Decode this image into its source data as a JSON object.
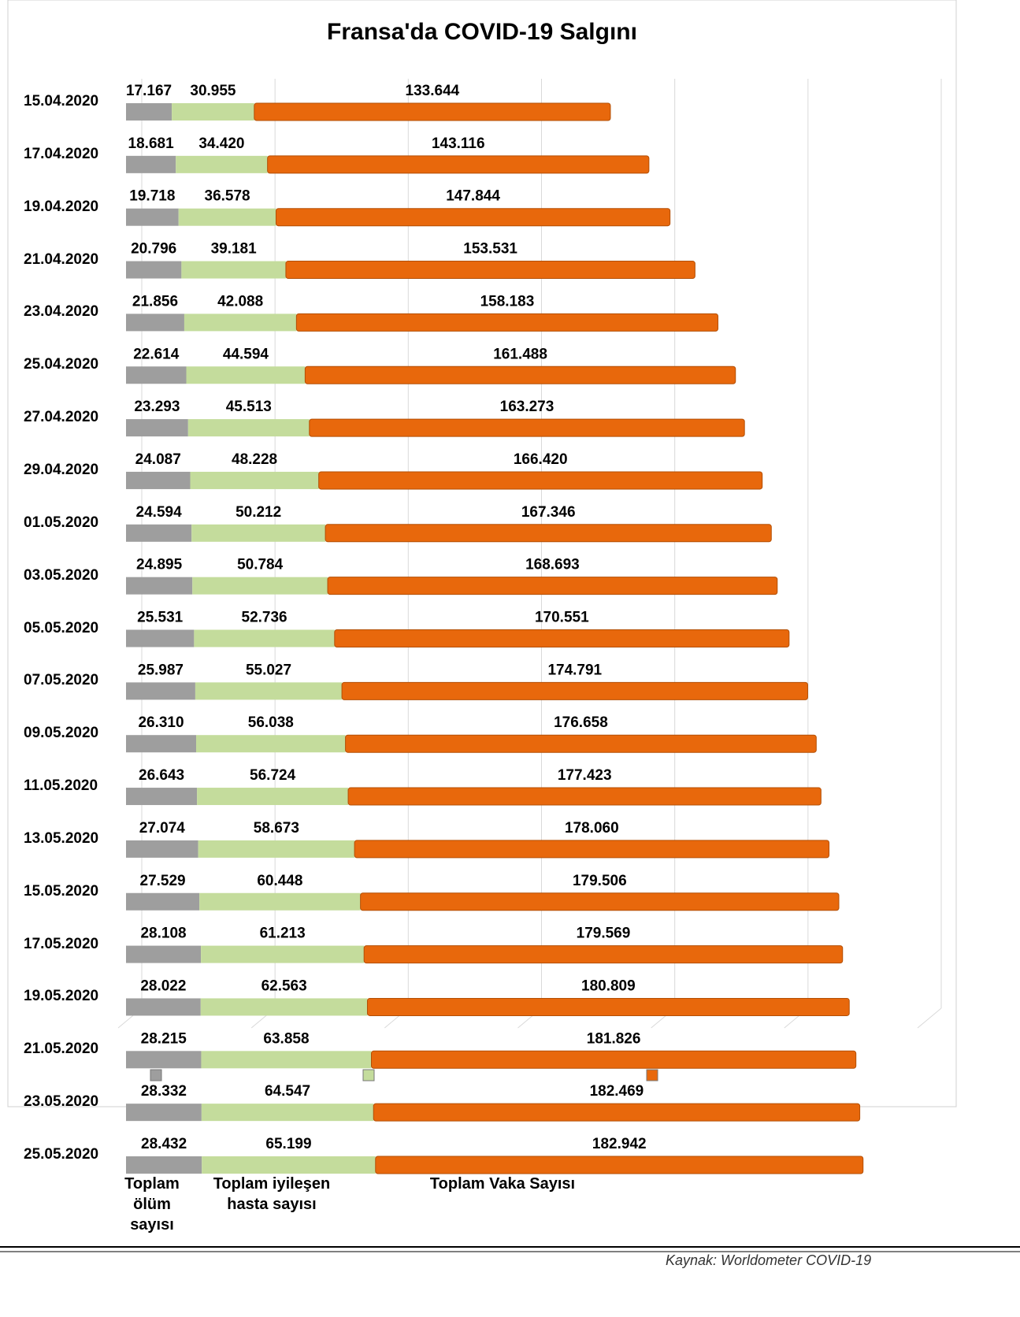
{
  "chart_data": {
    "type": "stacked_barh",
    "title": "Fransa'da COVID-19 Salgını",
    "categories": [
      "15.04.2020",
      "17.04.2020",
      "19.04.2020",
      "21.04.2020",
      "23.04.2020",
      "25.04.2020",
      "27.04.2020",
      "29.04.2020",
      "01.05.2020",
      "03.05.2020",
      "05.05.2020",
      "07.05.2020",
      "09.05.2020",
      "11.05.2020",
      "13.05.2020",
      "15.05.2020",
      "17.05.2020",
      "19.05.2020",
      "21.05.2020",
      "23.05.2020",
      "25.05.2020"
    ],
    "series": [
      {
        "name": "Toplam ölüm sayısı",
        "color": "#9e9e9e",
        "values": [
          17167,
          18681,
          19718,
          20796,
          21856,
          22614,
          23293,
          24087,
          24594,
          24895,
          25531,
          25987,
          26310,
          26643,
          27074,
          27529,
          28108,
          28022,
          28215,
          28332,
          28432
        ],
        "value_labels": [
          "17.167",
          "18.681",
          "19.718",
          "20.796",
          "21.856",
          "22.614",
          "23.293",
          "24.087",
          "24.594",
          "24.895",
          "25.531",
          "25.987",
          "26.310",
          "26.643",
          "27.074",
          "27.529",
          "28.108",
          "28.022",
          "28.215",
          "28.332",
          "28.432"
        ]
      },
      {
        "name": "Toplam iyileşen hasta sayısı",
        "color": "#c4dc9c",
        "values": [
          30955,
          34420,
          36578,
          39181,
          42088,
          44594,
          45513,
          48228,
          50212,
          50784,
          52736,
          55027,
          56038,
          56724,
          58673,
          60448,
          61213,
          62563,
          63858,
          64547,
          65199
        ],
        "value_labels": [
          "30.955",
          "34.420",
          "36.578",
          "39.181",
          "42.088",
          "44.594",
          "45.513",
          "48.228",
          "50.212",
          "50.784",
          "52.736",
          "55.027",
          "56.038",
          "56.724",
          "58.673",
          "60.448",
          "61.213",
          "62.563",
          "63.858",
          "64.547",
          "65.199"
        ]
      },
      {
        "name": "Toplam Vaka Sayısı",
        "color": "#e8680c",
        "values": [
          133644,
          143116,
          147844,
          153531,
          158183,
          161488,
          163273,
          166420,
          167346,
          168693,
          170551,
          174791,
          176658,
          177423,
          178060,
          179506,
          179569,
          180809,
          181826,
          182469,
          182942
        ],
        "value_labels": [
          "133.644",
          "143.116",
          "147.844",
          "153.531",
          "158.183",
          "161.488",
          "163.273",
          "166.420",
          "167.346",
          "168.693",
          "170.551",
          "174.791",
          "176.658",
          "177.423",
          "178.060",
          "179.506",
          "179.569",
          "180.809",
          "181.826",
          "182.469",
          "182.942"
        ]
      }
    ],
    "xlim": [
      0,
      300000
    ],
    "xticks": [
      0,
      50000,
      100000,
      150000,
      200000,
      250000,
      300000
    ],
    "grid": true,
    "source": "Kaynak: Worldometer COVID-19"
  }
}
